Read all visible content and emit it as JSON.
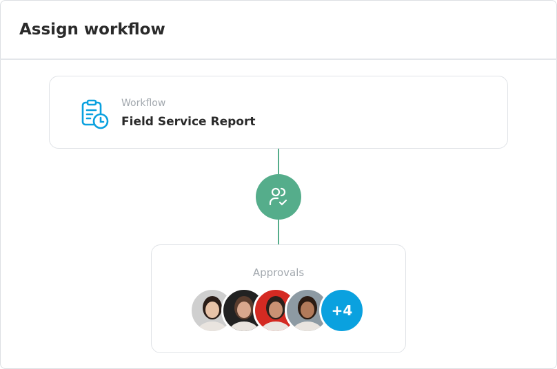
{
  "header": {
    "title": "Assign workflow"
  },
  "workflow": {
    "label": "Workflow",
    "name": "Field Service Report",
    "icon": "clipboard-clock-icon",
    "icon_color": "#0aa1df"
  },
  "connector": {
    "icon": "user-check-icon",
    "color": "#55ad8b"
  },
  "approvals": {
    "label": "Approvals",
    "avatars": [
      {
        "bg": "#cfcfcf",
        "skin": "#e8c3a8",
        "hair": "#2a1d18"
      },
      {
        "bg": "#222222",
        "skin": "#d9a88e",
        "hair": "#5a3d2e"
      },
      {
        "bg": "#d42a22",
        "skin": "#c99274",
        "hair": "#2a211c"
      },
      {
        "bg": "#8d9aa3",
        "skin": "#b27a5a",
        "hair": "#2b1b12"
      }
    ],
    "more": "+4",
    "more_color": "#0aa1df"
  }
}
